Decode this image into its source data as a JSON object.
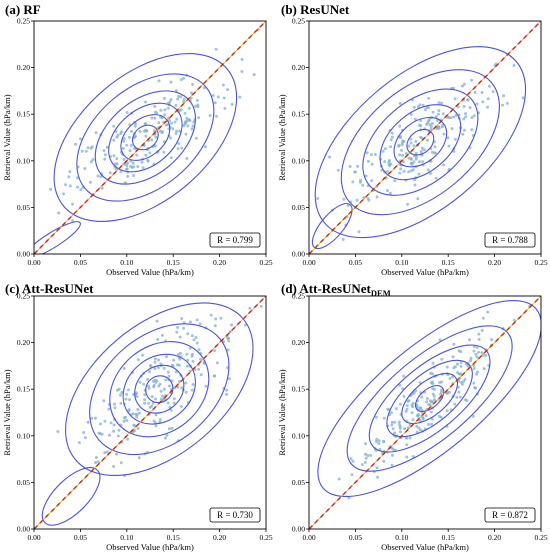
{
  "chart_data": [
    {
      "type": "scatter",
      "panel": "(a)",
      "title": "(a) RF",
      "xlabel": "Observed Value (hPa/km)",
      "ylabel": "Retrieval Value (hPa/km)",
      "xlim": [
        0,
        0.25
      ],
      "ylim": [
        0,
        0.25
      ],
      "xticks": [
        "0.00",
        "0.05",
        "0.10",
        "0.15",
        "0.20",
        "0.25"
      ],
      "yticks": [
        "0.00",
        "0.05",
        "0.10",
        "0.15",
        "0.20",
        "0.25"
      ],
      "r_label": "R = 0.799",
      "reference_line": "y = x",
      "center": [
        0.12,
        0.125
      ],
      "spread": [
        0.045,
        0.032
      ],
      "corr": 0.8,
      "contour_levels": [
        {
          "rx": 0.015,
          "ry": 0.012
        },
        {
          "rx": 0.03,
          "ry": 0.02
        },
        {
          "rx": 0.045,
          "ry": 0.03
        },
        {
          "rx": 0.062,
          "ry": 0.04
        },
        {
          "rx": 0.085,
          "ry": 0.054
        },
        {
          "rx": 0.115,
          "ry": 0.068
        }
      ],
      "extra_contours": [
        {
          "cx": 0.02,
          "cy": 0.015,
          "rx": 0.035,
          "ry": 0.008,
          "angle": 32
        }
      ]
    },
    {
      "type": "scatter",
      "panel": "(b)",
      "title": "(b) ResUNet",
      "xlabel": "Observed Value (hPa/km)",
      "ylabel": "Retrieval Value (hPa/km)",
      "xlim": [
        0,
        0.25
      ],
      "ylim": [
        0,
        0.25
      ],
      "xticks": [
        "0.00",
        "0.05",
        "0.10",
        "0.15",
        "0.20",
        "0.25"
      ],
      "yticks": [
        "0.00",
        "0.05",
        "0.10",
        "0.15",
        "0.20",
        "0.25"
      ],
      "r_label": "R = 0.788",
      "reference_line": "y = x",
      "center": [
        0.12,
        0.12
      ],
      "spread": [
        0.04,
        0.035
      ],
      "corr": 0.79,
      "contour_levels": [
        {
          "rx": 0.016,
          "ry": 0.012
        },
        {
          "rx": 0.032,
          "ry": 0.022
        },
        {
          "rx": 0.05,
          "ry": 0.032
        },
        {
          "rx": 0.072,
          "ry": 0.044
        },
        {
          "rx": 0.1,
          "ry": 0.058
        },
        {
          "rx": 0.135,
          "ry": 0.072
        }
      ],
      "extra_contours": [
        {
          "cx": 0.025,
          "cy": 0.03,
          "rx": 0.03,
          "ry": 0.012,
          "angle": 50
        }
      ]
    },
    {
      "type": "scatter",
      "panel": "(c)",
      "title": "(c) Att-ResUNet",
      "xlabel": "Observed Value (hPa/km)",
      "ylabel": "Retrieval Value (hPa/km)",
      "xlim": [
        0,
        0.25
      ],
      "ylim": [
        0,
        0.25
      ],
      "xticks": [
        "0.00",
        "0.05",
        "0.10",
        "0.15",
        "0.20",
        "0.25"
      ],
      "yticks": [
        "0.00",
        "0.05",
        "0.10",
        "0.15",
        "0.20",
        "0.25"
      ],
      "r_label": "R = 0.730",
      "reference_line": "y = x",
      "center": [
        0.135,
        0.15
      ],
      "spread": [
        0.04,
        0.04
      ],
      "corr": 0.73,
      "contour_levels": [
        {
          "rx": 0.015,
          "ry": 0.014
        },
        {
          "rx": 0.028,
          "ry": 0.024
        },
        {
          "rx": 0.042,
          "ry": 0.034
        },
        {
          "rx": 0.058,
          "ry": 0.046
        },
        {
          "rx": 0.085,
          "ry": 0.058
        },
        {
          "rx": 0.118,
          "ry": 0.07
        }
      ],
      "extra_contours": [
        {
          "cx": 0.04,
          "cy": 0.035,
          "rx": 0.04,
          "ry": 0.018,
          "angle": 45
        }
      ]
    },
    {
      "type": "scatter",
      "panel": "(d)",
      "title": "(d) Att-ResUNet",
      "title_subscript": "DEM",
      "xlabel": "Observed Value (hPa/km)",
      "ylabel": "Retrieval Value (hPa/km)",
      "xlim": [
        0,
        0.25
      ],
      "ylim": [
        0,
        0.25
      ],
      "xticks": [
        "0.00",
        "0.05",
        "0.10",
        "0.15",
        "0.20",
        "0.25"
      ],
      "yticks": [
        "0.00",
        "0.05",
        "0.10",
        "0.15",
        "0.20",
        "0.25"
      ],
      "r_label": "R = 0.872",
      "reference_line": "y = x",
      "center": [
        0.13,
        0.14
      ],
      "spread": [
        0.04,
        0.04
      ],
      "corr": 0.87,
      "contour_levels": [
        {
          "rx": 0.018,
          "ry": 0.01
        },
        {
          "rx": 0.036,
          "ry": 0.018
        },
        {
          "rx": 0.056,
          "ry": 0.026
        },
        {
          "rx": 0.08,
          "ry": 0.034
        },
        {
          "rx": 0.11,
          "ry": 0.044
        },
        {
          "rx": 0.15,
          "ry": 0.056
        }
      ],
      "extra_contours": []
    }
  ],
  "colors": {
    "contour": "#4a55d6",
    "points": "#7fb0d0",
    "reference": "#d11a1a",
    "reference_overlay": "#c8a000"
  }
}
